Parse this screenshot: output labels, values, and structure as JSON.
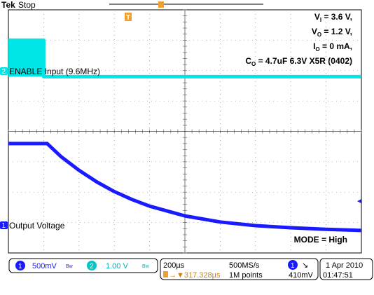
{
  "header": {
    "brand": "Tek",
    "status": "Stop",
    "trigger_marker": "T"
  },
  "annotations": {
    "vi_label": "V",
    "vi_sub": "I",
    "vi_value": " = 3.6 V,",
    "vo_label": "V",
    "vo_sub": "O",
    "vo_value": " = 1.2 V,",
    "io_label": "I",
    "io_sub": "O",
    "io_value": " = 0 mA,",
    "co_label": "C",
    "co_sub": "O",
    "co_value": " = 4.7uF 6.3V X5R (0402)",
    "mode": "MODE = High"
  },
  "channels": {
    "ch2": {
      "number": "2",
      "label": "ENABLE Input (9.6MHz)",
      "color": "#00e5e5"
    },
    "ch1": {
      "number": "1",
      "label": "Output Voltage",
      "color": "#1a1aff"
    }
  },
  "readout": {
    "ch1_num": "1",
    "ch1_scale": "500mV",
    "ch1_bw": "Bw",
    "ch2_num": "2",
    "ch2_scale": "1.00 V",
    "ch2_bw": "Bw",
    "timebase": "200µs",
    "trigger_pos": "→▼317.328µs",
    "sample_rate": "500MS/s",
    "record_length": "1M points",
    "trig_ch": "1",
    "trig_slope": "↘",
    "trig_level": "410mV",
    "date": "1 Apr 2010",
    "time": "01:47:51"
  },
  "chart_data": {
    "type": "line",
    "x_unit": "div",
    "y_unit": "div",
    "xlim": [
      0,
      10
    ],
    "ylim": [
      -4,
      4
    ],
    "grid": true,
    "series": [
      {
        "name": "ENABLE Input (9.6MHz)",
        "color": "#00e5e5",
        "x": [
          0,
          1.0,
          1.0,
          10
        ],
        "y": [
          3.0,
          3.0,
          1.8,
          1.8
        ],
        "filled_span_until": 1.0
      },
      {
        "name": "Output Voltage",
        "color": "#1a1aff",
        "x": [
          0,
          1.1,
          1.5,
          2.0,
          2.5,
          3.0,
          3.5,
          4.0,
          5.0,
          6.0,
          7.0,
          8.0,
          9.0,
          10.0
        ],
        "y": [
          -0.4,
          -0.4,
          -0.84,
          -1.28,
          -1.66,
          -1.98,
          -2.24,
          -2.46,
          -2.78,
          -2.98,
          -3.1,
          -3.17,
          -3.22,
          -3.26
        ]
      }
    ]
  }
}
